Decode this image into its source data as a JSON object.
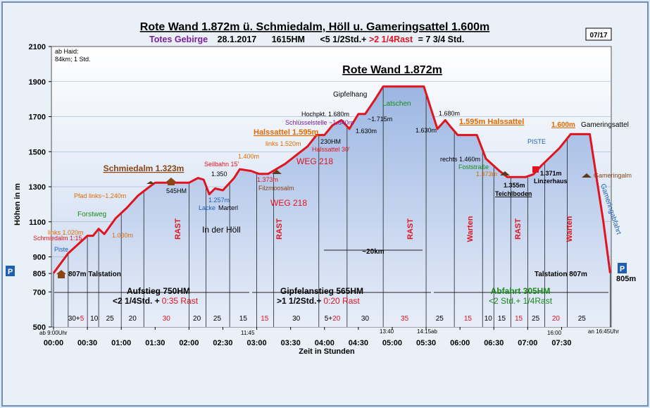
{
  "colors": {
    "bg": "#dfe9f3",
    "plot_top": "#ffffff",
    "plot_fill": "#c4d5ee",
    "profile_fill_top": "#a8c0e6",
    "profile_fill_bottom": "#e8eef9",
    "profile_line": "#e0141e",
    "title_line1": "#000000",
    "subtitle_purple": "#7a1fa0",
    "red_text": "#e0141e",
    "green_text": "#1a8a1a",
    "orange_text": "#e06a00",
    "blue_text": "#1e5fb4",
    "brown_text": "#8b4513"
  },
  "header": {
    "title": "Rote Wand 1.872m ü. Schmiedalm, Höll u. Gameringsattel 1.600m",
    "sub_region": "Totes Gebirge",
    "sub_date": "28.1.2017",
    "sub_hm": "1615HM",
    "sub_time_a": "<5 1/2Std.+",
    "sub_time_b": ">2 1/4Rast",
    "sub_time_c": "= 7 3/4 Std.",
    "badge": "07/17"
  },
  "chart_data": {
    "type": "area",
    "xlabel": "Zeit in  Stunden",
    "ylabel": "Höhen in m",
    "xlim": [
      0,
      480
    ],
    "ylim": [
      500,
      2100
    ],
    "yticks": [
      500,
      700,
      805,
      900,
      1100,
      1300,
      1500,
      1700,
      1900,
      2100
    ],
    "xticks": [
      {
        "v": 0,
        "l": "00:00"
      },
      {
        "v": 30,
        "l": "00:30"
      },
      {
        "v": 60,
        "l": "01:00"
      },
      {
        "v": 90,
        "l": "01:30"
      },
      {
        "v": 120,
        "l": "02:00"
      },
      {
        "v": 150,
        "l": "02:30"
      },
      {
        "v": 180,
        "l": "03:00"
      },
      {
        "v": 210,
        "l": "03:30"
      },
      {
        "v": 240,
        "l": "04:00"
      },
      {
        "v": 270,
        "l": "04:30"
      },
      {
        "v": 300,
        "l": "05:00"
      },
      {
        "v": 330,
        "l": "05:30"
      },
      {
        "v": 360,
        "l": "06:00"
      },
      {
        "v": 390,
        "l": "06:30"
      },
      {
        "v": 420,
        "l": "07:00"
      },
      {
        "v": 450,
        "l": "07:30"
      }
    ],
    "profile": [
      {
        "t": 0,
        "h": 807
      },
      {
        "t": 13,
        "h": 920
      },
      {
        "t": 30,
        "h": 1020
      },
      {
        "t": 35,
        "h": 1020
      },
      {
        "t": 40,
        "h": 1060
      },
      {
        "t": 45,
        "h": 1030
      },
      {
        "t": 55,
        "h": 1120
      },
      {
        "t": 65,
        "h": 1180
      },
      {
        "t": 75,
        "h": 1250
      },
      {
        "t": 85,
        "h": 1300
      },
      {
        "t": 90,
        "h": 1323
      },
      {
        "t": 120,
        "h": 1323
      },
      {
        "t": 128,
        "h": 1350
      },
      {
        "t": 133,
        "h": 1340
      },
      {
        "t": 138,
        "h": 1257
      },
      {
        "t": 143,
        "h": 1290
      },
      {
        "t": 150,
        "h": 1280
      },
      {
        "t": 160,
        "h": 1350
      },
      {
        "t": 165,
        "h": 1400
      },
      {
        "t": 175,
        "h": 1390
      },
      {
        "t": 182,
        "h": 1373
      },
      {
        "t": 190,
        "h": 1373
      },
      {
        "t": 205,
        "h": 1430
      },
      {
        "t": 215,
        "h": 1480
      },
      {
        "t": 225,
        "h": 1530
      },
      {
        "t": 233,
        "h": 1595
      },
      {
        "t": 240,
        "h": 1595
      },
      {
        "t": 247,
        "h": 1650
      },
      {
        "t": 255,
        "h": 1680
      },
      {
        "t": 262,
        "h": 1630
      },
      {
        "t": 270,
        "h": 1715
      },
      {
        "t": 276,
        "h": 1715
      },
      {
        "t": 285,
        "h": 1800
      },
      {
        "t": 292,
        "h": 1872
      },
      {
        "t": 328,
        "h": 1872
      },
      {
        "t": 340,
        "h": 1630
      },
      {
        "t": 347,
        "h": 1680
      },
      {
        "t": 352,
        "h": 1640
      },
      {
        "t": 358,
        "h": 1595
      },
      {
        "t": 375,
        "h": 1595
      },
      {
        "t": 383,
        "h": 1460
      },
      {
        "t": 395,
        "h": 1390
      },
      {
        "t": 402,
        "h": 1355
      },
      {
        "t": 418,
        "h": 1355
      },
      {
        "t": 425,
        "h": 1371
      },
      {
        "t": 432,
        "h": 1420
      },
      {
        "t": 448,
        "h": 1520
      },
      {
        "t": 458,
        "h": 1600
      },
      {
        "t": 475,
        "h": 1600
      },
      {
        "t": 487,
        "h": 1100
      },
      {
        "t": 493,
        "h": 807
      }
    ],
    "segment_lines": [
      0,
      13,
      30,
      40,
      60,
      80,
      120,
      135,
      156,
      180,
      195,
      235,
      260,
      292,
      330,
      355,
      380,
      390,
      405,
      420,
      435,
      455,
      493
    ],
    "bottom_row": [
      {
        "t": 20,
        "a": "30+",
        "b": "5"
      },
      {
        "t": 36,
        "a": "10",
        "b": ""
      },
      {
        "t": 50,
        "a": "25",
        "b": ""
      },
      {
        "t": 70,
        "a": "20",
        "b": ""
      },
      {
        "t": 100,
        "a": "30",
        "b": "",
        "red": true
      },
      {
        "t": 127,
        "a": "20",
        "b": ""
      },
      {
        "t": 145,
        "a": "25",
        "b": ""
      },
      {
        "t": 168,
        "a": "15",
        "b": ""
      },
      {
        "t": 187,
        "a": "15",
        "b": "",
        "red": true
      },
      {
        "t": 215,
        "a": "30",
        "b": ""
      },
      {
        "t": 247,
        "a": "5+",
        "b": "20"
      },
      {
        "t": 276,
        "a": "30",
        "b": ""
      },
      {
        "t": 311,
        "a": "35",
        "b": "",
        "red": true
      },
      {
        "t": 342,
        "a": "25",
        "b": ""
      },
      {
        "t": 367,
        "a": "15",
        "b": "",
        "red": true
      },
      {
        "t": 385,
        "a": "10",
        "b": ""
      },
      {
        "t": 397,
        "a": "15",
        "b": ""
      },
      {
        "t": 412,
        "a": "15",
        "b": "",
        "red": true
      },
      {
        "t": 427,
        "a": "25",
        "b": ""
      },
      {
        "t": 445,
        "a": "20",
        "b": "",
        "red": true
      },
      {
        "t": 468,
        "a": "25",
        "b": ""
      }
    ],
    "labels": {
      "ab_haid_1": "ab Haid:",
      "ab_haid_2": "84km; 1 Std.",
      "summit_big": "Rote Wand 1.872m",
      "schmiedalm_big": "Schmiedalm 1.323m",
      "gipfelhang": "Gipfelhang",
      "latschen": "Latschen",
      "hochpkt": "Hochpkt. 1.680m",
      "schluessel": "Schlüsselstelle ~1.640m",
      "halssattel1": "Halssattel 1.595m",
      "links1520": "links 1.520m",
      "p230hm": "230HM",
      "halssattel30": "Halssattel 30'",
      "weg218a": "WEG 218",
      "weg218b": "WEG 218",
      "p1630a": "1.630m",
      "p1715": "~1.715m",
      "p1630b": "1.630m",
      "p1680": "1.680m",
      "halssattel2": "1.595m Halssattel",
      "p1600": "1.600m",
      "gameringsattel": "Gameringsattel",
      "piste_top": "PISTE",
      "rechts1460": "rechts 1.460m",
      "foststrasse": "Foststraße",
      "p1373r": "1.373m",
      "p1355": "1.355m",
      "teichlboden": "Teichlboden",
      "p1371": "1.371m",
      "linzerhaus": "Linzerhaus",
      "gameringalm": "Gameringalm",
      "gameringabfahrt": "Gameringabfahrt",
      "seilbahn": "Seilbahn 15'",
      "p1350": "1.350",
      "p1400": "1.400m",
      "p1373": "1.373m",
      "filzmoosalm": "Filzmoosalm",
      "lacke": "Lacke",
      "marterl": "Marterl",
      "p1257": "1.257m",
      "in_der_hoell": "In der Höll",
      "p545hm": "545HM",
      "pfad": "Pfad links~1.240m",
      "forstweg": "Forstweg",
      "links1020": "links 1.020m",
      "schmiedalm115": "Schmiedalm 1:15",
      "p1030": "1.030m",
      "piste_left": "Piste",
      "talstation_l": "807m Talstation",
      "talstation_r": "Talstation 807m",
      "p_left": "P",
      "p_right": "P",
      "p805r": "805m",
      "rast1": "RAST",
      "rast2": "RAST",
      "rast3": "RAST",
      "rast4": "RAST",
      "warten1": "Warten",
      "warten2": "Warten",
      "dist20": "~20km",
      "aufstieg": "Aufstieg 750HM",
      "aufstieg_t": "<2 1/4Std. +",
      "aufstieg_r": "0:35 Rast",
      "gipfel": "Gipfelanstieg 565HM",
      "gipfel_t": ">1 1/2Std.+",
      "gipfel_r": "0:20 Rast",
      "abfahrt": "Abfahrt 305HM",
      "abfahrt_t": "<2 Std.+ 1/4Rast",
      "t_start": "ab 9:00Uhr",
      "t_1145": "11:45",
      "t_1340": "13:40",
      "t_1415": "14:15ab",
      "t_1600": "16:00",
      "t_end": "an 16:45Uhr"
    }
  }
}
